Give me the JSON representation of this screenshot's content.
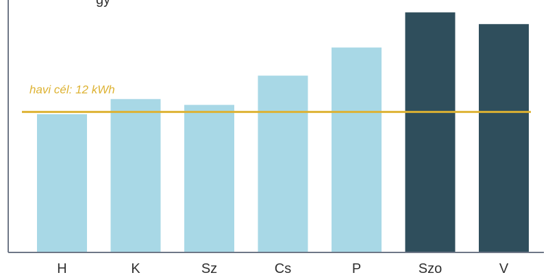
{
  "chart_data": {
    "type": "bar",
    "title_partial": "gy",
    "categories": [
      "H",
      "K",
      "Sz",
      "Cs",
      "P",
      "Szo",
      "V"
    ],
    "values": [
      11.8,
      13.1,
      12.6,
      15.1,
      17.5,
      20.5,
      19.5
    ],
    "bar_colors": [
      "#a8d8e6",
      "#a8d8e6",
      "#a8d8e6",
      "#a8d8e6",
      "#a8d8e6",
      "#2f4e5c",
      "#2f4e5c"
    ],
    "ylim": [
      0,
      21.5
    ],
    "reference_line": {
      "value": 12,
      "label": "havi cél: 12 kWh",
      "color": "#ddb232"
    },
    "axis_color": "#6d7686",
    "grid": false
  }
}
